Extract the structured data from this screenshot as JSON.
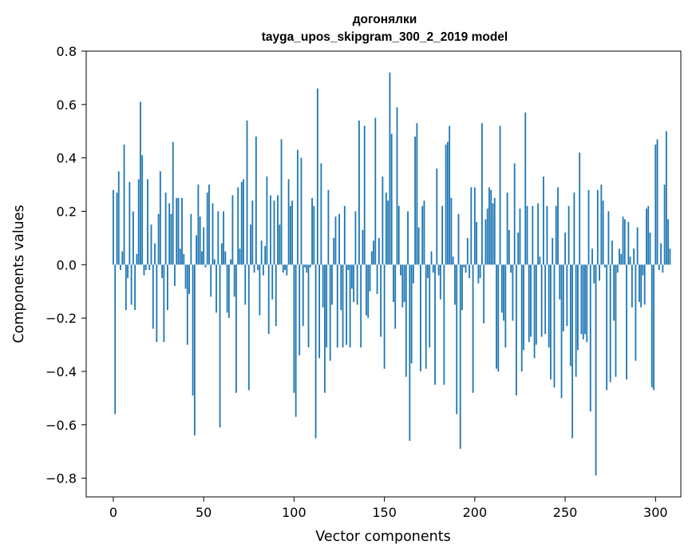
{
  "chart_data": {
    "type": "bar",
    "title": "догонялки",
    "subtitle": "tayga_upos_skipgram_300_2_2019 model",
    "xlabel": "Vector components",
    "ylabel": "Components values",
    "xlim": [
      -15,
      314
    ],
    "ylim": [
      -0.87,
      0.8
    ],
    "xticks": [
      0,
      50,
      100,
      150,
      200,
      250,
      300
    ],
    "yticks": [
      -0.8,
      -0.6,
      -0.4,
      -0.2,
      0.0,
      0.2,
      0.4,
      0.6,
      0.8
    ],
    "ytick_labels": [
      "−0.8",
      "−0.6",
      "−0.4",
      "−0.2",
      "0.0",
      "0.2",
      "0.4",
      "0.6",
      "0.8"
    ],
    "grid": false,
    "color": "#1f77b4",
    "values": [
      0.28,
      -0.56,
      0.27,
      0.35,
      -0.02,
      0.05,
      0.45,
      -0.17,
      -0.05,
      0.31,
      -0.15,
      0.2,
      -0.17,
      0.04,
      0.32,
      0.61,
      0.41,
      -0.04,
      -0.02,
      0.32,
      -0.02,
      0.15,
      -0.24,
      0.08,
      -0.29,
      0.19,
      0.35,
      -0.05,
      -0.29,
      0.27,
      -0.17,
      0.23,
      0.19,
      0.46,
      -0.08,
      0.25,
      0.25,
      0.06,
      0.25,
      0.04,
      -0.09,
      -0.3,
      -0.11,
      0.19,
      -0.49,
      -0.64,
      0.11,
      0.3,
      0.18,
      0.05,
      0.14,
      -0.01,
      0.27,
      0.3,
      -0.12,
      0.23,
      0.02,
      -0.18,
      0.2,
      -0.61,
      0.08,
      0.2,
      0.05,
      -0.18,
      -0.2,
      0.02,
      0.26,
      -0.12,
      -0.48,
      0.29,
      0.06,
      0.31,
      0.32,
      -0.15,
      0.54,
      -0.47,
      0.15,
      0.24,
      -0.03,
      0.48,
      -0.02,
      -0.19,
      0.09,
      -0.04,
      0.07,
      0.33,
      -0.26,
      0.26,
      -0.13,
      0.24,
      -0.23,
      0.26,
      0.15,
      0.47,
      -0.03,
      -0.02,
      -0.04,
      0.32,
      0.22,
      0.24,
      -0.48,
      -0.57,
      0.43,
      -0.34,
      0.4,
      -0.23,
      -0.01,
      -0.03,
      -0.31,
      -0.01,
      0.25,
      0.22,
      -0.65,
      0.66,
      -0.35,
      0.38,
      -0.16,
      -0.48,
      -0.31,
      0.28,
      -0.36,
      -0.15,
      0.1,
      0.18,
      -0.31,
      0.19,
      -0.17,
      -0.31,
      0.22,
      -0.3,
      -0.02,
      -0.31,
      -0.09,
      -0.14,
      0.2,
      -0.15,
      0.54,
      -0.31,
      0.13,
      0.52,
      -0.19,
      -0.2,
      -0.1,
      0.05,
      0.09,
      0.55,
      -0.11,
      0.1,
      -0.27,
      0.33,
      -0.39,
      0.27,
      0.24,
      0.72,
      0.49,
      -0.14,
      -0.24,
      0.59,
      0.22,
      -0.04,
      -0.16,
      -0.14,
      -0.42,
      0.2,
      -0.66,
      -0.37,
      -0.07,
      0.48,
      0.53,
      0.14,
      -0.4,
      0.22,
      0.24,
      -0.39,
      -0.05,
      -0.31,
      0.05,
      -0.03,
      -0.45,
      0.36,
      -0.04,
      -0.13,
      0.22,
      -0.45,
      0.45,
      0.46,
      0.52,
      0.25,
      0.03,
      -0.15,
      -0.56,
      0.19,
      -0.69,
      -0.17,
      -0.01,
      -0.03,
      0.1,
      -0.05,
      0.29,
      -0.48,
      0.29,
      0.16,
      -0.07,
      -0.05,
      0.53,
      -0.22,
      0.17,
      0.21,
      0.29,
      0.28,
      0.23,
      0.25,
      -0.39,
      -0.4,
      0.52,
      -0.18,
      -0.21,
      -0.31,
      0.27,
      0.13,
      -0.03,
      -0.21,
      0.38,
      -0.49,
      0.12,
      0.21,
      -0.4,
      -0.32,
      0.57,
      0.22,
      -0.29,
      -0.27,
      0.22,
      -0.35,
      -0.3,
      0.23,
      0.03,
      -0.27,
      0.33,
      -0.26,
      0.22,
      -0.31,
      -0.43,
      0.1,
      -0.46,
      0.22,
      0.29,
      -0.13,
      -0.5,
      -0.25,
      0.12,
      -0.23,
      0.22,
      -0.38,
      -0.65,
      0.27,
      -0.42,
      -0.32,
      0.42,
      -0.26,
      -0.28,
      -0.26,
      -0.29,
      0.28,
      -0.55,
      0.06,
      -0.07,
      -0.79,
      0.28,
      -0.06,
      0.3,
      0.24,
      -0.01,
      -0.47,
      0.2,
      -0.44,
      0.09,
      -0.21,
      -0.42,
      -0.03,
      0.06,
      0.04,
      0.18,
      0.17,
      -0.43,
      0.16,
      0.03,
      -0.16,
      0.06,
      -0.36,
      0.14,
      -0.14,
      -0.16,
      -0.04,
      -0.15,
      0.21,
      0.22,
      0.12,
      -0.46,
      -0.47,
      0.45,
      0.47,
      -0.02,
      0.08,
      -0.03,
      0.3,
      0.5,
      0.17,
      0.06
    ]
  }
}
